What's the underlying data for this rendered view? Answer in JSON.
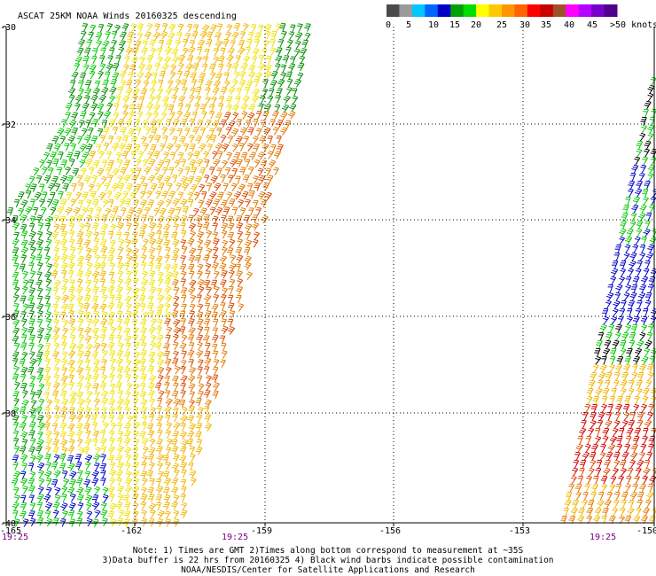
{
  "title": "ASCAT 25KM NOAA Winds 20160325 descending",
  "legend": {
    "unit_label": ">50 knots",
    "tick_labels": [
      "0",
      "5",
      "10",
      "15",
      "20",
      "25",
      "30",
      "35",
      "40",
      "45"
    ],
    "colors": [
      "#4a4a4a",
      "#9a9a9a",
      "#00c8ff",
      "#0064ff",
      "#0000c8",
      "#00a000",
      "#00dc00",
      "#ffff00",
      "#ffc800",
      "#ff9600",
      "#ff6400",
      "#ff0000",
      "#c80000",
      "#a05028",
      "#ff00ff",
      "#b400ff",
      "#7800c8",
      "#50008c"
    ]
  },
  "lat_labels": [
    "-30",
    "-32",
    "-34",
    "-36",
    "-38",
    "-40"
  ],
  "lon_labels": [
    "-165",
    "-162",
    "-159",
    "-156",
    "-153",
    "-150"
  ],
  "time_labels": [
    "19:25",
    "19:25",
    "19:25"
  ],
  "notes": {
    "line1": "Note: 1) Times are GMT 2)Times along bottom correspond to measurement at ~35S",
    "line2": "3)Data buffer is 22 hrs from 20160325 4) Black wind barbs indicate possible contamination",
    "line3": "NOAA/NESDIS/Center for Satellite Applications and Research"
  },
  "colors": {
    "green_dark": "#008c00",
    "green": "#00c800",
    "yellow": "#f0e000",
    "gold": "#f0b400",
    "orange": "#e07800",
    "red_orange": "#d84800",
    "red": "#d00000",
    "blue": "#0000c8",
    "black": "#000000"
  }
}
